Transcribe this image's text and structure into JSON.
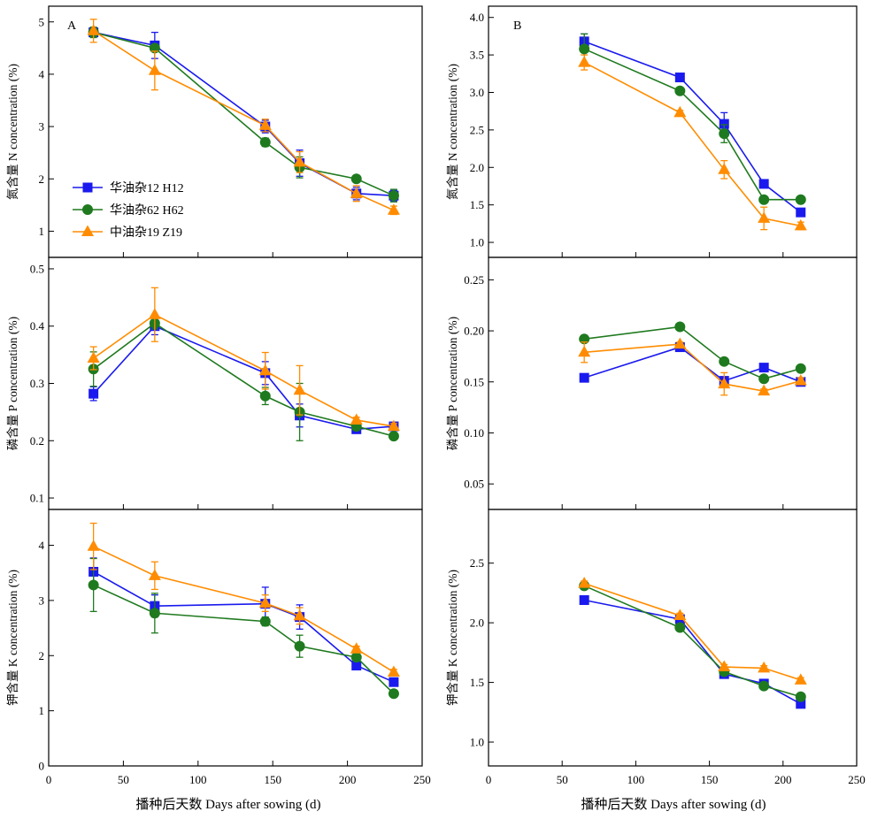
{
  "figure": {
    "panel_labels": [
      "A",
      "B"
    ],
    "xlabel": "播种后天数 Days after sowing (d)"
  },
  "colors": {
    "H12": "#1a1aee",
    "H62": "#1f7a1f",
    "Z19": "#ff8c00"
  },
  "legend": [
    {
      "key": "H12",
      "label": "华油杂12 H12",
      "marker": "square"
    },
    {
      "key": "H62",
      "label": "华油杂62 H62",
      "marker": "circle"
    },
    {
      "key": "Z19",
      "label": "中油杂19 Z19",
      "marker": "triangle"
    }
  ],
  "chart_data": [
    {
      "type": "line",
      "panel": "A",
      "row": 0,
      "ylabel": "氮含量 N concentration (%)",
      "xlim": [
        0,
        250
      ],
      "ylim": [
        0.5,
        5.3
      ],
      "xticks": [
        0,
        50,
        100,
        150,
        200,
        250
      ],
      "show_xticklabels": false,
      "yticks": [
        1,
        2,
        3,
        4,
        5
      ],
      "ytick_labels": [
        "1",
        "2",
        "3",
        "4",
        "5"
      ],
      "legend_position": "lower-left",
      "series": [
        {
          "name": "华油杂12 H12",
          "key": "H12",
          "x": [
            30,
            71,
            145,
            168,
            206,
            231
          ],
          "y": [
            4.8,
            4.55,
            3.0,
            2.3,
            1.72,
            1.68
          ],
          "err": [
            0.08,
            0.25,
            0.12,
            0.25,
            0.12,
            0.1
          ]
        },
        {
          "name": "华油杂62 H62",
          "key": "H62",
          "x": [
            30,
            71,
            145,
            168,
            206,
            231
          ],
          "y": [
            4.8,
            4.5,
            2.7,
            2.22,
            2.0,
            1.68
          ],
          "err": [
            0.1,
            0.05,
            0.08,
            0.2,
            0.05,
            0.12
          ]
        },
        {
          "name": "中油杂19 Z19",
          "key": "Z19",
          "x": [
            30,
            71,
            145,
            168,
            206,
            231
          ],
          "y": [
            4.83,
            4.07,
            3.02,
            2.32,
            1.72,
            1.4
          ],
          "err": [
            0.22,
            0.37,
            0.12,
            0.2,
            0.15,
            0.08
          ]
        }
      ]
    },
    {
      "type": "line",
      "panel": "B",
      "row": 0,
      "ylabel": "氮含量 N concentration (%)",
      "xlim": [
        0,
        250
      ],
      "ylim": [
        0.8,
        4.15
      ],
      "xticks": [
        0,
        50,
        100,
        150,
        200,
        250
      ],
      "show_xticklabels": false,
      "yticks": [
        1.0,
        1.5,
        2.0,
        2.5,
        3.0,
        3.5,
        4.0
      ],
      "ytick_labels": [
        "1.0",
        "1.5",
        "2.0",
        "2.5",
        "3.0",
        "3.5",
        "4.0"
      ],
      "series": [
        {
          "name": "华油杂12 H12",
          "key": "H12",
          "x": [
            65,
            130,
            160,
            187,
            212
          ],
          "y": [
            3.68,
            3.2,
            2.58,
            1.78,
            1.4
          ],
          "err": [
            0.1,
            0.03,
            0.15,
            0.03,
            0.05
          ]
        },
        {
          "name": "华油杂62 H62",
          "key": "H62",
          "x": [
            65,
            130,
            160,
            187,
            212
          ],
          "y": [
            3.58,
            3.02,
            2.45,
            1.57,
            1.57
          ],
          "err": [
            0.2,
            0.03,
            0.12,
            0.03,
            0.03
          ]
        },
        {
          "name": "中油杂19 Z19",
          "key": "Z19",
          "x": [
            65,
            130,
            160,
            187,
            212
          ],
          "y": [
            3.4,
            2.73,
            1.97,
            1.32,
            1.22
          ],
          "err": [
            0.1,
            0.03,
            0.12,
            0.15,
            0.05
          ]
        }
      ]
    },
    {
      "type": "line",
      "panel": "A",
      "row": 1,
      "ylabel": "磷含量 P concentration (%)",
      "xlim": [
        0,
        250
      ],
      "ylim": [
        0.08,
        0.52
      ],
      "xticks": [
        0,
        50,
        100,
        150,
        200,
        250
      ],
      "show_xticklabels": false,
      "yticks": [
        0.1,
        0.2,
        0.3,
        0.4,
        0.5
      ],
      "ytick_labels": [
        "0.1",
        "0.2",
        "0.3",
        "0.4",
        "0.5"
      ],
      "series": [
        {
          "name": "华油杂12 H12",
          "key": "H12",
          "x": [
            30,
            71,
            145,
            168,
            206,
            231
          ],
          "y": [
            0.282,
            0.4,
            0.318,
            0.244,
            0.22,
            0.225
          ],
          "err": [
            0.012,
            0.015,
            0.02,
            0.02,
            0.006,
            0.006
          ]
        },
        {
          "name": "华油杂62 H62",
          "key": "H62",
          "x": [
            30,
            71,
            145,
            168,
            206,
            231
          ],
          "y": [
            0.325,
            0.405,
            0.278,
            0.25,
            0.225,
            0.208
          ],
          "err": [
            0.03,
            0.01,
            0.015,
            0.05,
            0.006,
            0.005
          ]
        },
        {
          "name": "中油杂19 Z19",
          "key": "Z19",
          "x": [
            30,
            71,
            145,
            168,
            206,
            231
          ],
          "y": [
            0.344,
            0.42,
            0.322,
            0.288,
            0.236,
            0.225
          ],
          "err": [
            0.02,
            0.047,
            0.032,
            0.043,
            0.005,
            0.005
          ]
        }
      ]
    },
    {
      "type": "line",
      "panel": "B",
      "row": 1,
      "ylabel": "磷含量 P concentration (%)",
      "xlim": [
        0,
        250
      ],
      "ylim": [
        0.025,
        0.272
      ],
      "xticks": [
        0,
        50,
        100,
        150,
        200,
        250
      ],
      "show_xticklabels": false,
      "yticks": [
        0.05,
        0.1,
        0.15,
        0.2,
        0.25
      ],
      "ytick_labels": [
        "0.05",
        "0.10",
        "0.15",
        "0.20",
        "0.25"
      ],
      "series": [
        {
          "name": "华油杂12 H12",
          "key": "H12",
          "x": [
            65,
            130,
            160,
            187,
            212
          ],
          "y": [
            0.154,
            0.184,
            0.151,
            0.164,
            0.15
          ],
          "err": [
            0.002,
            0.002,
            0.004,
            0.002,
            0.002
          ]
        },
        {
          "name": "华油杂62 H62",
          "key": "H62",
          "x": [
            65,
            130,
            160,
            187,
            212
          ],
          "y": [
            0.192,
            0.204,
            0.17,
            0.153,
            0.163
          ],
          "err": [
            0.002,
            0.002,
            0.002,
            0.002,
            0.002
          ]
        },
        {
          "name": "中油杂19 Z19",
          "key": "Z19",
          "x": [
            65,
            130,
            160,
            187,
            212
          ],
          "y": [
            0.179,
            0.187,
            0.148,
            0.141,
            0.151
          ],
          "err": [
            0.01,
            0.002,
            0.011,
            0.002,
            0.003
          ]
        }
      ]
    },
    {
      "type": "line",
      "panel": "A",
      "row": 2,
      "ylabel": "钾含量 K concentration (%)",
      "xlim": [
        0,
        250
      ],
      "ylim": [
        0,
        4.65
      ],
      "xticks": [
        0,
        50,
        100,
        150,
        200,
        250
      ],
      "show_xticklabels": true,
      "xtick_labels": [
        "0",
        "50",
        "100",
        "150",
        "200",
        "250"
      ],
      "yticks": [
        0,
        1,
        2,
        3,
        4
      ],
      "ytick_labels": [
        "0",
        "1",
        "2",
        "3",
        "4"
      ],
      "series": [
        {
          "name": "华油杂12 H12",
          "key": "H12",
          "x": [
            30,
            71,
            145,
            168,
            206,
            231
          ],
          "y": [
            3.52,
            2.9,
            2.94,
            2.7,
            1.82,
            1.52
          ],
          "err": [
            0.25,
            0.2,
            0.3,
            0.22,
            0.05,
            0.05
          ]
        },
        {
          "name": "华油杂62 H62",
          "key": "H62",
          "x": [
            30,
            71,
            145,
            168,
            206,
            231
          ],
          "y": [
            3.28,
            2.77,
            2.62,
            2.17,
            1.97,
            1.31
          ],
          "err": [
            0.48,
            0.36,
            0.08,
            0.2,
            0.05,
            0.05
          ]
        },
        {
          "name": "中油杂19 Z19",
          "key": "Z19",
          "x": [
            30,
            71,
            145,
            168,
            206,
            231
          ],
          "y": [
            3.98,
            3.45,
            2.95,
            2.72,
            2.12,
            1.7
          ],
          "err": [
            0.42,
            0.25,
            0.15,
            0.15,
            0.05,
            0.05
          ]
        }
      ]
    },
    {
      "type": "line",
      "panel": "B",
      "row": 2,
      "ylabel": "钾含量 K concentration (%)",
      "xlim": [
        0,
        250
      ],
      "ylim": [
        0.8,
        2.95
      ],
      "xticks": [
        0,
        50,
        100,
        150,
        200,
        250
      ],
      "show_xticklabels": true,
      "xtick_labels": [
        "0",
        "50",
        "100",
        "150",
        "200",
        "250"
      ],
      "yticks": [
        1.0,
        1.5,
        2.0,
        2.5
      ],
      "ytick_labels": [
        "1.0",
        "1.5",
        "2.0",
        "2.5"
      ],
      "series": [
        {
          "name": "华油杂12 H12",
          "key": "H12",
          "x": [
            65,
            130,
            160,
            187,
            212
          ],
          "y": [
            2.19,
            2.03,
            1.57,
            1.49,
            1.32
          ],
          "err": [
            0.02,
            0.02,
            0.02,
            0.02,
            0.02
          ]
        },
        {
          "name": "华油杂62 H62",
          "key": "H62",
          "x": [
            65,
            130,
            160,
            187,
            212
          ],
          "y": [
            2.31,
            1.96,
            1.59,
            1.47,
            1.38
          ],
          "err": [
            0.02,
            0.02,
            0.02,
            0.02,
            0.02
          ]
        },
        {
          "name": "中油杂19 Z19",
          "key": "Z19",
          "x": [
            65,
            130,
            160,
            187,
            212
          ],
          "y": [
            2.33,
            2.06,
            1.63,
            1.62,
            1.52
          ],
          "err": [
            0.02,
            0.02,
            0.02,
            0.02,
            0.02
          ]
        }
      ]
    }
  ]
}
